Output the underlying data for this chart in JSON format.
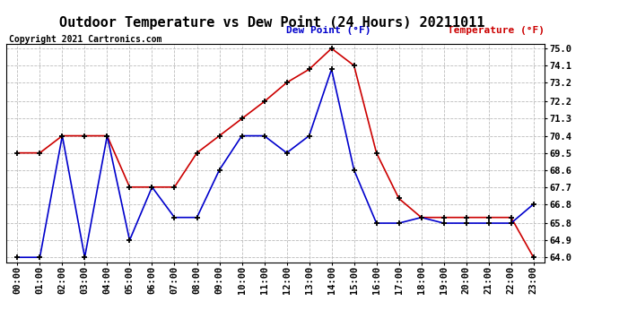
{
  "title": "Outdoor Temperature vs Dew Point (24 Hours) 20211011",
  "copyright": "Copyright 2021 Cartronics.com",
  "legend_dew": "Dew Point (°F)",
  "legend_temp": "Temperature (°F)",
  "x_labels": [
    "00:00",
    "01:00",
    "02:00",
    "03:00",
    "04:00",
    "05:00",
    "06:00",
    "07:00",
    "08:00",
    "09:00",
    "10:00",
    "11:00",
    "12:00",
    "13:00",
    "14:00",
    "15:00",
    "16:00",
    "17:00",
    "18:00",
    "19:00",
    "20:00",
    "21:00",
    "22:00",
    "23:00"
  ],
  "temperature": [
    69.5,
    69.5,
    70.4,
    70.4,
    70.4,
    67.7,
    67.7,
    67.7,
    69.5,
    70.4,
    71.3,
    72.2,
    73.2,
    73.9,
    75.0,
    74.1,
    69.5,
    67.1,
    66.1,
    66.1,
    66.1,
    66.1,
    66.1,
    64.0
  ],
  "dew_point": [
    64.0,
    64.0,
    70.4,
    64.0,
    70.4,
    64.9,
    67.7,
    66.1,
    66.1,
    68.6,
    70.4,
    70.4,
    69.5,
    70.4,
    73.9,
    68.6,
    65.8,
    65.8,
    66.1,
    65.8,
    65.8,
    65.8,
    65.8,
    66.8
  ],
  "y_min": 64.0,
  "y_max": 75.0,
  "y_ticks": [
    64.0,
    64.9,
    65.8,
    66.8,
    67.7,
    68.6,
    69.5,
    70.4,
    71.3,
    72.2,
    73.2,
    74.1,
    75.0
  ],
  "temp_color": "#cc0000",
  "dew_color": "#0000cc",
  "bg_color": "#ffffff",
  "grid_color": "#bbbbbb",
  "title_fontsize": 11,
  "copyright_fontsize": 7,
  "legend_fontsize": 8,
  "tick_fontsize": 7.5
}
